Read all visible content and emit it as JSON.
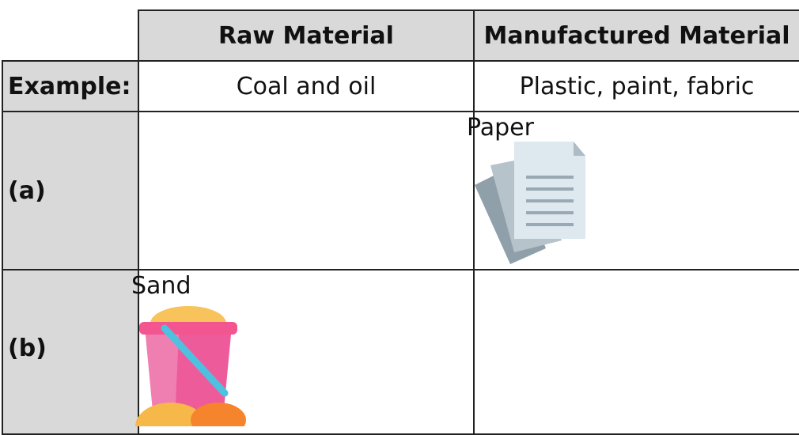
{
  "header": {
    "columns": [
      "Raw Material",
      "Manufactured Material"
    ]
  },
  "rows": [
    {
      "label": "Example:",
      "raw": "Coal and oil",
      "manufactured": "Plastic, paint, fabric"
    },
    {
      "label": "(a)",
      "manufactured": "Paper"
    },
    {
      "label": "(b)",
      "raw": "Sand"
    }
  ]
}
